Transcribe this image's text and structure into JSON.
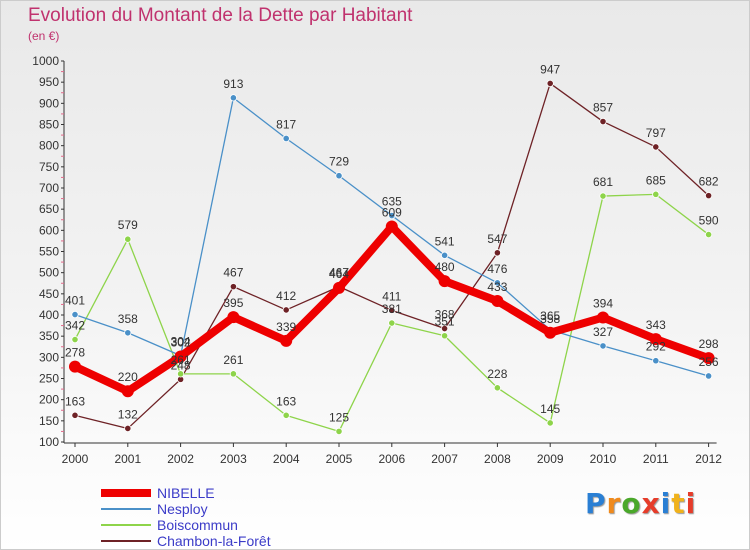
{
  "title": "Evolution du Montant de la Dette par Habitant",
  "subtitle": "(en €)",
  "logo": "Proxiti",
  "colors": {
    "title": "#c0326e",
    "legend_text": "#3c3cc8"
  },
  "chart_data": {
    "type": "line",
    "title": "Evolution du Montant de la Dette par Habitant",
    "subtitle": "(en €)",
    "x": [
      "2000",
      "2001",
      "2002",
      "2003",
      "2004",
      "2005",
      "2006",
      "2007",
      "2008",
      "2009",
      "2010",
      "2011",
      "2012"
    ],
    "ylim": [
      100,
      1000
    ],
    "yticks": [
      100,
      150,
      200,
      250,
      300,
      350,
      400,
      450,
      500,
      550,
      600,
      650,
      700,
      750,
      800,
      850,
      900,
      950,
      1000
    ],
    "grid": false,
    "legend": "bottom-left",
    "series": [
      {
        "name": "NIBELLE",
        "color": "#ee0000",
        "values": [
          278,
          220,
          302,
          395,
          339,
          464,
          609,
          480,
          433,
          358,
          394,
          343,
          298
        ]
      },
      {
        "name": "Nesploy",
        "color": "#4a90c8",
        "values": [
          401,
          358,
          304,
          913,
          817,
          729,
          635,
          541,
          476,
          365,
          327,
          292,
          256
        ]
      },
      {
        "name": "Boiscommun",
        "color": "#8ed44a",
        "values": [
          342,
          579,
          261,
          261,
          163,
          125,
          381,
          351,
          228,
          145,
          681,
          685,
          590
        ]
      },
      {
        "name": "Chambon-la-Forêt",
        "color": "#6e2226",
        "values": [
          163,
          132,
          248,
          467,
          412,
          467,
          411,
          368,
          547,
          947,
          857,
          797,
          682
        ]
      }
    ]
  }
}
